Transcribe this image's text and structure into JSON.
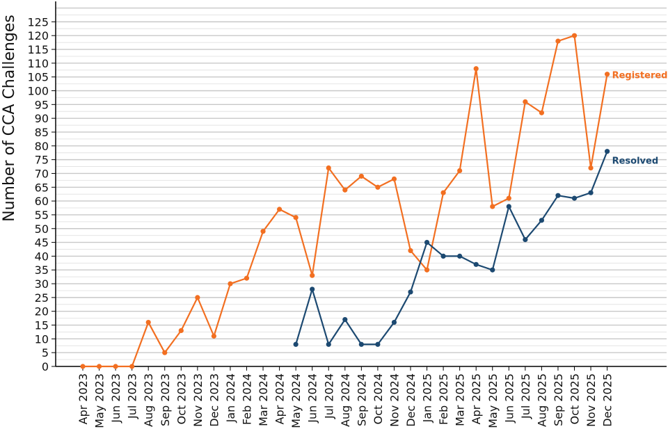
{
  "chart_data": {
    "type": "line",
    "title": "",
    "xlabel": "",
    "ylabel": "Number of CCA Challenges",
    "ylim": [
      0,
      130
    ],
    "y_ticks": [
      0,
      5,
      10,
      15,
      20,
      25,
      30,
      35,
      40,
      45,
      50,
      55,
      60,
      65,
      70,
      75,
      80,
      85,
      90,
      95,
      100,
      105,
      110,
      115,
      120,
      125
    ],
    "grid": true,
    "categories": [
      "Apr 2023",
      "May 2023",
      "Jun 2023",
      "Jul 2023",
      "Aug 2023",
      "Sep 2023",
      "Oct 2023",
      "Nov 2023",
      "Dec 2023",
      "Jan 2024",
      "Feb 2024",
      "Mar 2024",
      "Apr 2024",
      "May 2024",
      "Jun 2024",
      "Jul 2024",
      "Aug 2024",
      "Sep 2024",
      "Oct 2024",
      "Nov 2024",
      "Dec 2024",
      "Jan 2025",
      "Feb 2025",
      "Mar 2025",
      "Apr 2025",
      "May 2025",
      "Jun 2025",
      "Jul 2025",
      "Aug 2025",
      "Sep 2025",
      "Oct 2025",
      "Nov 2025",
      "Dec 2025"
    ],
    "series": [
      {
        "name": "Registered",
        "color": "#f26f21",
        "values": [
          0,
          0,
          0,
          0,
          16,
          5,
          13,
          25,
          11,
          30,
          32,
          49,
          57,
          54,
          33,
          72,
          64,
          69,
          65,
          68,
          42,
          35,
          63,
          71,
          108,
          58,
          61,
          96,
          92,
          118,
          120,
          72,
          106
        ]
      },
      {
        "name": "Resolved",
        "color": "#1c4971",
        "values": [
          null,
          null,
          null,
          null,
          null,
          null,
          null,
          null,
          null,
          null,
          null,
          null,
          null,
          8,
          28,
          8,
          17,
          8,
          8,
          16,
          27,
          45,
          40,
          40,
          37,
          35,
          58,
          46,
          53,
          62,
          61,
          63,
          78
        ]
      }
    ]
  }
}
